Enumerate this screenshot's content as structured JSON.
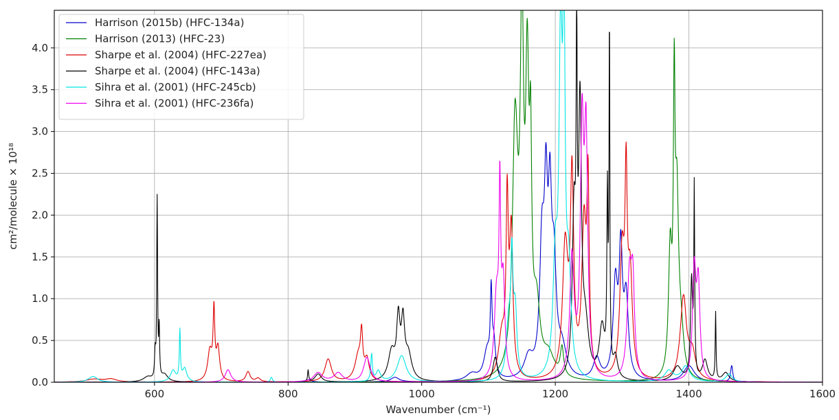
{
  "chart_data": {
    "type": "line",
    "title": "",
    "xlabel": "Wavenumber (cm⁻¹)",
    "ylabel": "cm²/molecule × 10¹⁸",
    "xlim": [
      450,
      1600
    ],
    "ylim": [
      0,
      4.45
    ],
    "xticks": [
      600,
      800,
      1000,
      1200,
      1400,
      1600
    ],
    "yticks": [
      0.0,
      0.5,
      1.0,
      1.5,
      2.0,
      2.5,
      3.0,
      3.5,
      4.0
    ],
    "xtick_labels": [
      "600",
      "800",
      "1000",
      "1200",
      "1400",
      "1600"
    ],
    "ytick_labels": [
      "0.0",
      "0.5",
      "1.0",
      "1.5",
      "2.0",
      "2.5",
      "3.0",
      "3.5",
      "4.0"
    ],
    "grid": true,
    "legend_position": "top-left",
    "series": [
      {
        "name": "Harrison (2015b) (HFC-134a)",
        "color": "#0000cc",
        "peaks": [
          [
            830,
            0.03,
            6
          ],
          [
            960,
            0.06,
            8
          ],
          [
            1075,
            0.1,
            10
          ],
          [
            1098,
            0.4,
            6
          ],
          [
            1104,
            1.05,
            1.5
          ],
          [
            1108,
            0.45,
            3
          ],
          [
            1160,
            0.3,
            8
          ],
          [
            1180,
            1.75,
            4
          ],
          [
            1186,
            2.2,
            3
          ],
          [
            1192,
            2.1,
            3
          ],
          [
            1198,
            1.4,
            4
          ],
          [
            1210,
            0.4,
            8
          ],
          [
            1262,
            0.3,
            6
          ],
          [
            1290,
            1.3,
            4
          ],
          [
            1298,
            1.65,
            3
          ],
          [
            1306,
            1.1,
            4
          ],
          [
            1400,
            0.2,
            10
          ],
          [
            1464,
            0.2,
            2
          ]
        ]
      },
      {
        "name": "Harrison (2013) (HFC-23)",
        "color": "#008000",
        "peaks": [
          [
            1140,
            3.4,
            5
          ],
          [
            1150,
            4.6,
            3
          ],
          [
            1158,
            3.8,
            3
          ],
          [
            1163,
            2.5,
            2
          ],
          [
            1172,
            0.9,
            6
          ],
          [
            1190,
            0.3,
            10
          ],
          [
            1210,
            0.4,
            3
          ],
          [
            1378,
            3.55,
            1.5
          ],
          [
            1382,
            2.3,
            3
          ],
          [
            1372,
            1.7,
            3
          ],
          [
            1388,
            0.6,
            5
          ]
        ]
      },
      {
        "name": "Sharpe et al. (2004) (HFC-227ea)",
        "color": "#dd0000",
        "peaks": [
          [
            510,
            0.04,
            15
          ],
          [
            535,
            0.04,
            10
          ],
          [
            683,
            0.42,
            4
          ],
          [
            689,
            0.93,
            1.5
          ],
          [
            695,
            0.45,
            3
          ],
          [
            740,
            0.13,
            4
          ],
          [
            755,
            0.05,
            4
          ],
          [
            860,
            0.28,
            6
          ],
          [
            905,
            0.35,
            6
          ],
          [
            910,
            0.55,
            2
          ],
          [
            918,
            0.28,
            4
          ],
          [
            1120,
            0.6,
            6
          ],
          [
            1128,
            2.3,
            2
          ],
          [
            1134,
            2.0,
            3
          ],
          [
            1215,
            1.8,
            5
          ],
          [
            1225,
            2.7,
            3
          ],
          [
            1243,
            2.1,
            4
          ],
          [
            1249,
            2.45,
            2
          ],
          [
            1300,
            1.7,
            4
          ],
          [
            1306,
            2.4,
            2
          ],
          [
            1312,
            1.4,
            4
          ],
          [
            1392,
            1.05,
            6
          ],
          [
            1405,
            0.35,
            6
          ]
        ]
      },
      {
        "name": "Sharpe et al. (2004) (HFC-143a)",
        "color": "#000000",
        "peaks": [
          [
            590,
            0.07,
            8
          ],
          [
            601,
            0.35,
            1
          ],
          [
            604,
            2.25,
            0.8
          ],
          [
            607,
            0.7,
            0.8
          ],
          [
            615,
            0.1,
            6
          ],
          [
            830,
            0.15,
            1
          ],
          [
            845,
            0.1,
            6
          ],
          [
            955,
            0.4,
            6
          ],
          [
            965,
            0.8,
            3
          ],
          [
            972,
            0.75,
            3
          ],
          [
            980,
            0.35,
            6
          ],
          [
            1110,
            0.3,
            4
          ],
          [
            1228,
            2.2,
            3
          ],
          [
            1232,
            4.0,
            1
          ],
          [
            1237,
            3.6,
            2.5
          ],
          [
            1245,
            0.7,
            6
          ],
          [
            1270,
            0.72,
            5
          ],
          [
            1278,
            2.4,
            1
          ],
          [
            1281,
            4.45,
            0.8
          ],
          [
            1290,
            0.3,
            4
          ],
          [
            1383,
            0.2,
            8
          ],
          [
            1404,
            1.3,
            2
          ],
          [
            1408,
            2.45,
            0.8
          ],
          [
            1424,
            0.28,
            5
          ],
          [
            1440,
            0.85,
            0.8
          ],
          [
            1455,
            0.12,
            6
          ]
        ]
      },
      {
        "name": "Sihra et al. (2001) (HFC-245cb)",
        "color": "#00e5e5",
        "peaks": [
          [
            508,
            0.07,
            8
          ],
          [
            628,
            0.15,
            5
          ],
          [
            638,
            0.65,
            1
          ],
          [
            645,
            0.18,
            4
          ],
          [
            775,
            0.06,
            2
          ],
          [
            925,
            0.35,
            1.5
          ],
          [
            935,
            0.15,
            4
          ],
          [
            970,
            0.32,
            8
          ],
          [
            1130,
            0.75,
            4
          ],
          [
            1135,
            1.5,
            2
          ],
          [
            1140,
            0.9,
            3
          ],
          [
            1200,
            1.5,
            4
          ],
          [
            1208,
            4.45,
            3
          ],
          [
            1213,
            4.45,
            2
          ],
          [
            1220,
            1.4,
            4
          ],
          [
            1370,
            0.15,
            8
          ],
          [
            1395,
            0.2,
            8
          ],
          [
            1460,
            0.1,
            6
          ]
        ]
      },
      {
        "name": "Sihra et al. (2001) (HFC-236fa)",
        "color": "#ee00ee",
        "peaks": [
          [
            710,
            0.15,
            5
          ],
          [
            845,
            0.12,
            8
          ],
          [
            875,
            0.12,
            8
          ],
          [
            918,
            0.3,
            6
          ],
          [
            1112,
            1.15,
            4
          ],
          [
            1117,
            2.35,
            1.5
          ],
          [
            1122,
            1.3,
            3
          ],
          [
            1225,
            1.6,
            4
          ],
          [
            1240,
            3.3,
            3
          ],
          [
            1246,
            3.2,
            3
          ],
          [
            1311,
            1.4,
            4
          ],
          [
            1316,
            1.2,
            3
          ],
          [
            1408,
            1.5,
            3
          ],
          [
            1414,
            1.3,
            3
          ]
        ]
      }
    ]
  }
}
